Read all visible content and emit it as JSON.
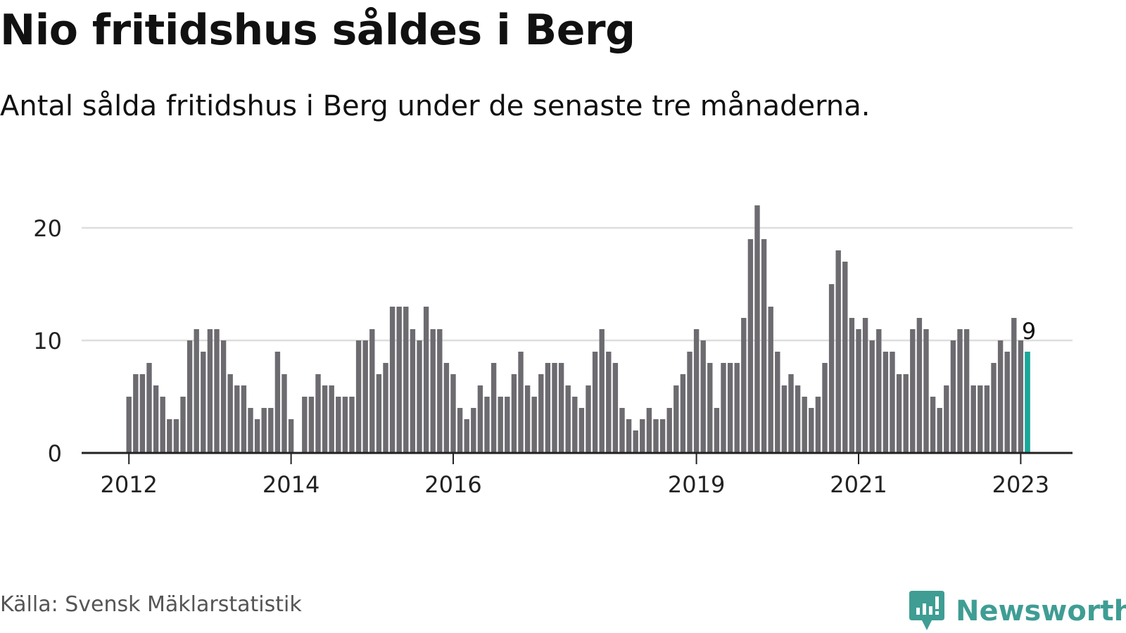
{
  "header": {
    "title": "Nio fritidshus såldes i Berg",
    "subtitle": "Antal sålda fritidshus i Berg under de senaste tre månaderna."
  },
  "footer": {
    "source": "Källa: Svensk Mäklarstatistik",
    "brand": "Newsworthy"
  },
  "colors": {
    "bar": "#6d6b70",
    "highlight": "#18a89a",
    "grid": "#dddddd",
    "axis": "#222222",
    "brand": "#3f9d94"
  },
  "chart_data": {
    "type": "bar",
    "start": "2012-01",
    "ylim": [
      0,
      22
    ],
    "yticks": [
      0,
      10,
      20
    ],
    "grid": true,
    "xticks": [
      {
        "label": "2012",
        "index": 0
      },
      {
        "label": "2014",
        "index": 24
      },
      {
        "label": "2016",
        "index": 48
      },
      {
        "label": "2019",
        "index": 84
      },
      {
        "label": "2021",
        "index": 108
      },
      {
        "label": "2023",
        "index": 132
      }
    ],
    "values": [
      5,
      7,
      7,
      8,
      6,
      5,
      3,
      3,
      5,
      10,
      11,
      9,
      11,
      11,
      10,
      7,
      6,
      6,
      4,
      3,
      4,
      4,
      9,
      7,
      3,
      0,
      5,
      5,
      7,
      6,
      6,
      5,
      5,
      5,
      10,
      10,
      11,
      7,
      8,
      13,
      13,
      13,
      11,
      10,
      13,
      11,
      11,
      8,
      7,
      4,
      3,
      4,
      6,
      5,
      8,
      5,
      5,
      7,
      9,
      6,
      5,
      7,
      8,
      8,
      8,
      6,
      5,
      4,
      6,
      9,
      11,
      9,
      8,
      4,
      3,
      2,
      3,
      4,
      3,
      3,
      4,
      6,
      7,
      9,
      11,
      10,
      8,
      4,
      8,
      8,
      8,
      12,
      19,
      22,
      19,
      13,
      9,
      6,
      7,
      6,
      5,
      4,
      5,
      8,
      15,
      18,
      17,
      12,
      11,
      12,
      10,
      11,
      9,
      9,
      7,
      7,
      11,
      12,
      11,
      5,
      4,
      6,
      10,
      11,
      11,
      6,
      6,
      6,
      8,
      10,
      9,
      12,
      10,
      9
    ],
    "highlight_index": 133,
    "annotation": {
      "index": 133,
      "text": "9"
    }
  }
}
